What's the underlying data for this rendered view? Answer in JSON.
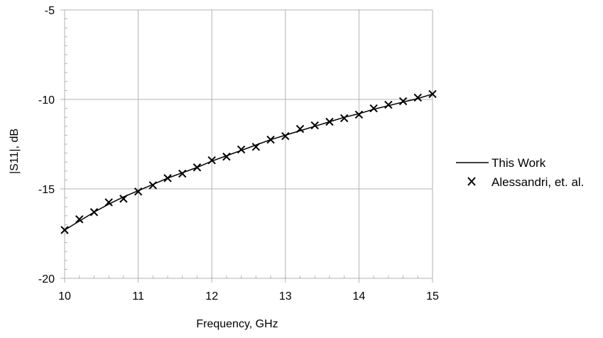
{
  "chart_data": {
    "type": "line",
    "title": "",
    "xlabel": "Frequency, GHz",
    "ylabel": "|S11|, dB",
    "xlim": [
      10,
      15
    ],
    "ylim": [
      -20,
      -5
    ],
    "x_ticks": [
      "10",
      "11",
      "12",
      "13",
      "14",
      "15"
    ],
    "y_ticks": [
      "-5",
      "-10",
      "-15",
      "-20"
    ],
    "grid": true,
    "legend_position": "right",
    "series": [
      {
        "name": "This Work",
        "style": "line",
        "color": "#000000",
        "x": [
          10.0,
          10.2,
          10.4,
          10.6,
          10.8,
          11.0,
          11.2,
          11.4,
          11.6,
          11.8,
          12.0,
          12.2,
          12.4,
          12.6,
          12.8,
          13.0,
          13.2,
          13.4,
          13.6,
          13.8,
          14.0,
          14.2,
          14.4,
          14.6,
          14.8,
          15.0
        ],
        "y": [
          -17.3,
          -16.8,
          -16.3,
          -15.85,
          -15.45,
          -15.1,
          -14.75,
          -14.4,
          -14.1,
          -13.8,
          -13.45,
          -13.15,
          -12.85,
          -12.55,
          -12.25,
          -12.0,
          -11.75,
          -11.5,
          -11.25,
          -11.0,
          -10.8,
          -10.55,
          -10.35,
          -10.15,
          -9.95,
          -9.7
        ]
      },
      {
        "name": "Alessandri, et. al.",
        "style": "marker-x",
        "color": "#000000",
        "x": [
          10.0,
          10.2,
          10.4,
          10.6,
          10.8,
          11.0,
          11.2,
          11.4,
          11.6,
          11.8,
          12.0,
          12.2,
          12.4,
          12.6,
          12.8,
          13.0,
          13.2,
          13.4,
          13.6,
          13.8,
          14.0,
          14.2,
          14.4,
          14.6,
          14.8,
          15.0
        ],
        "y": [
          -17.3,
          -16.7,
          -16.3,
          -15.75,
          -15.55,
          -15.15,
          -14.8,
          -14.4,
          -14.15,
          -13.8,
          -13.4,
          -13.2,
          -12.8,
          -12.65,
          -12.25,
          -12.05,
          -11.65,
          -11.45,
          -11.25,
          -11.05,
          -10.85,
          -10.5,
          -10.3,
          -10.1,
          -9.9,
          -9.7
        ]
      }
    ]
  }
}
